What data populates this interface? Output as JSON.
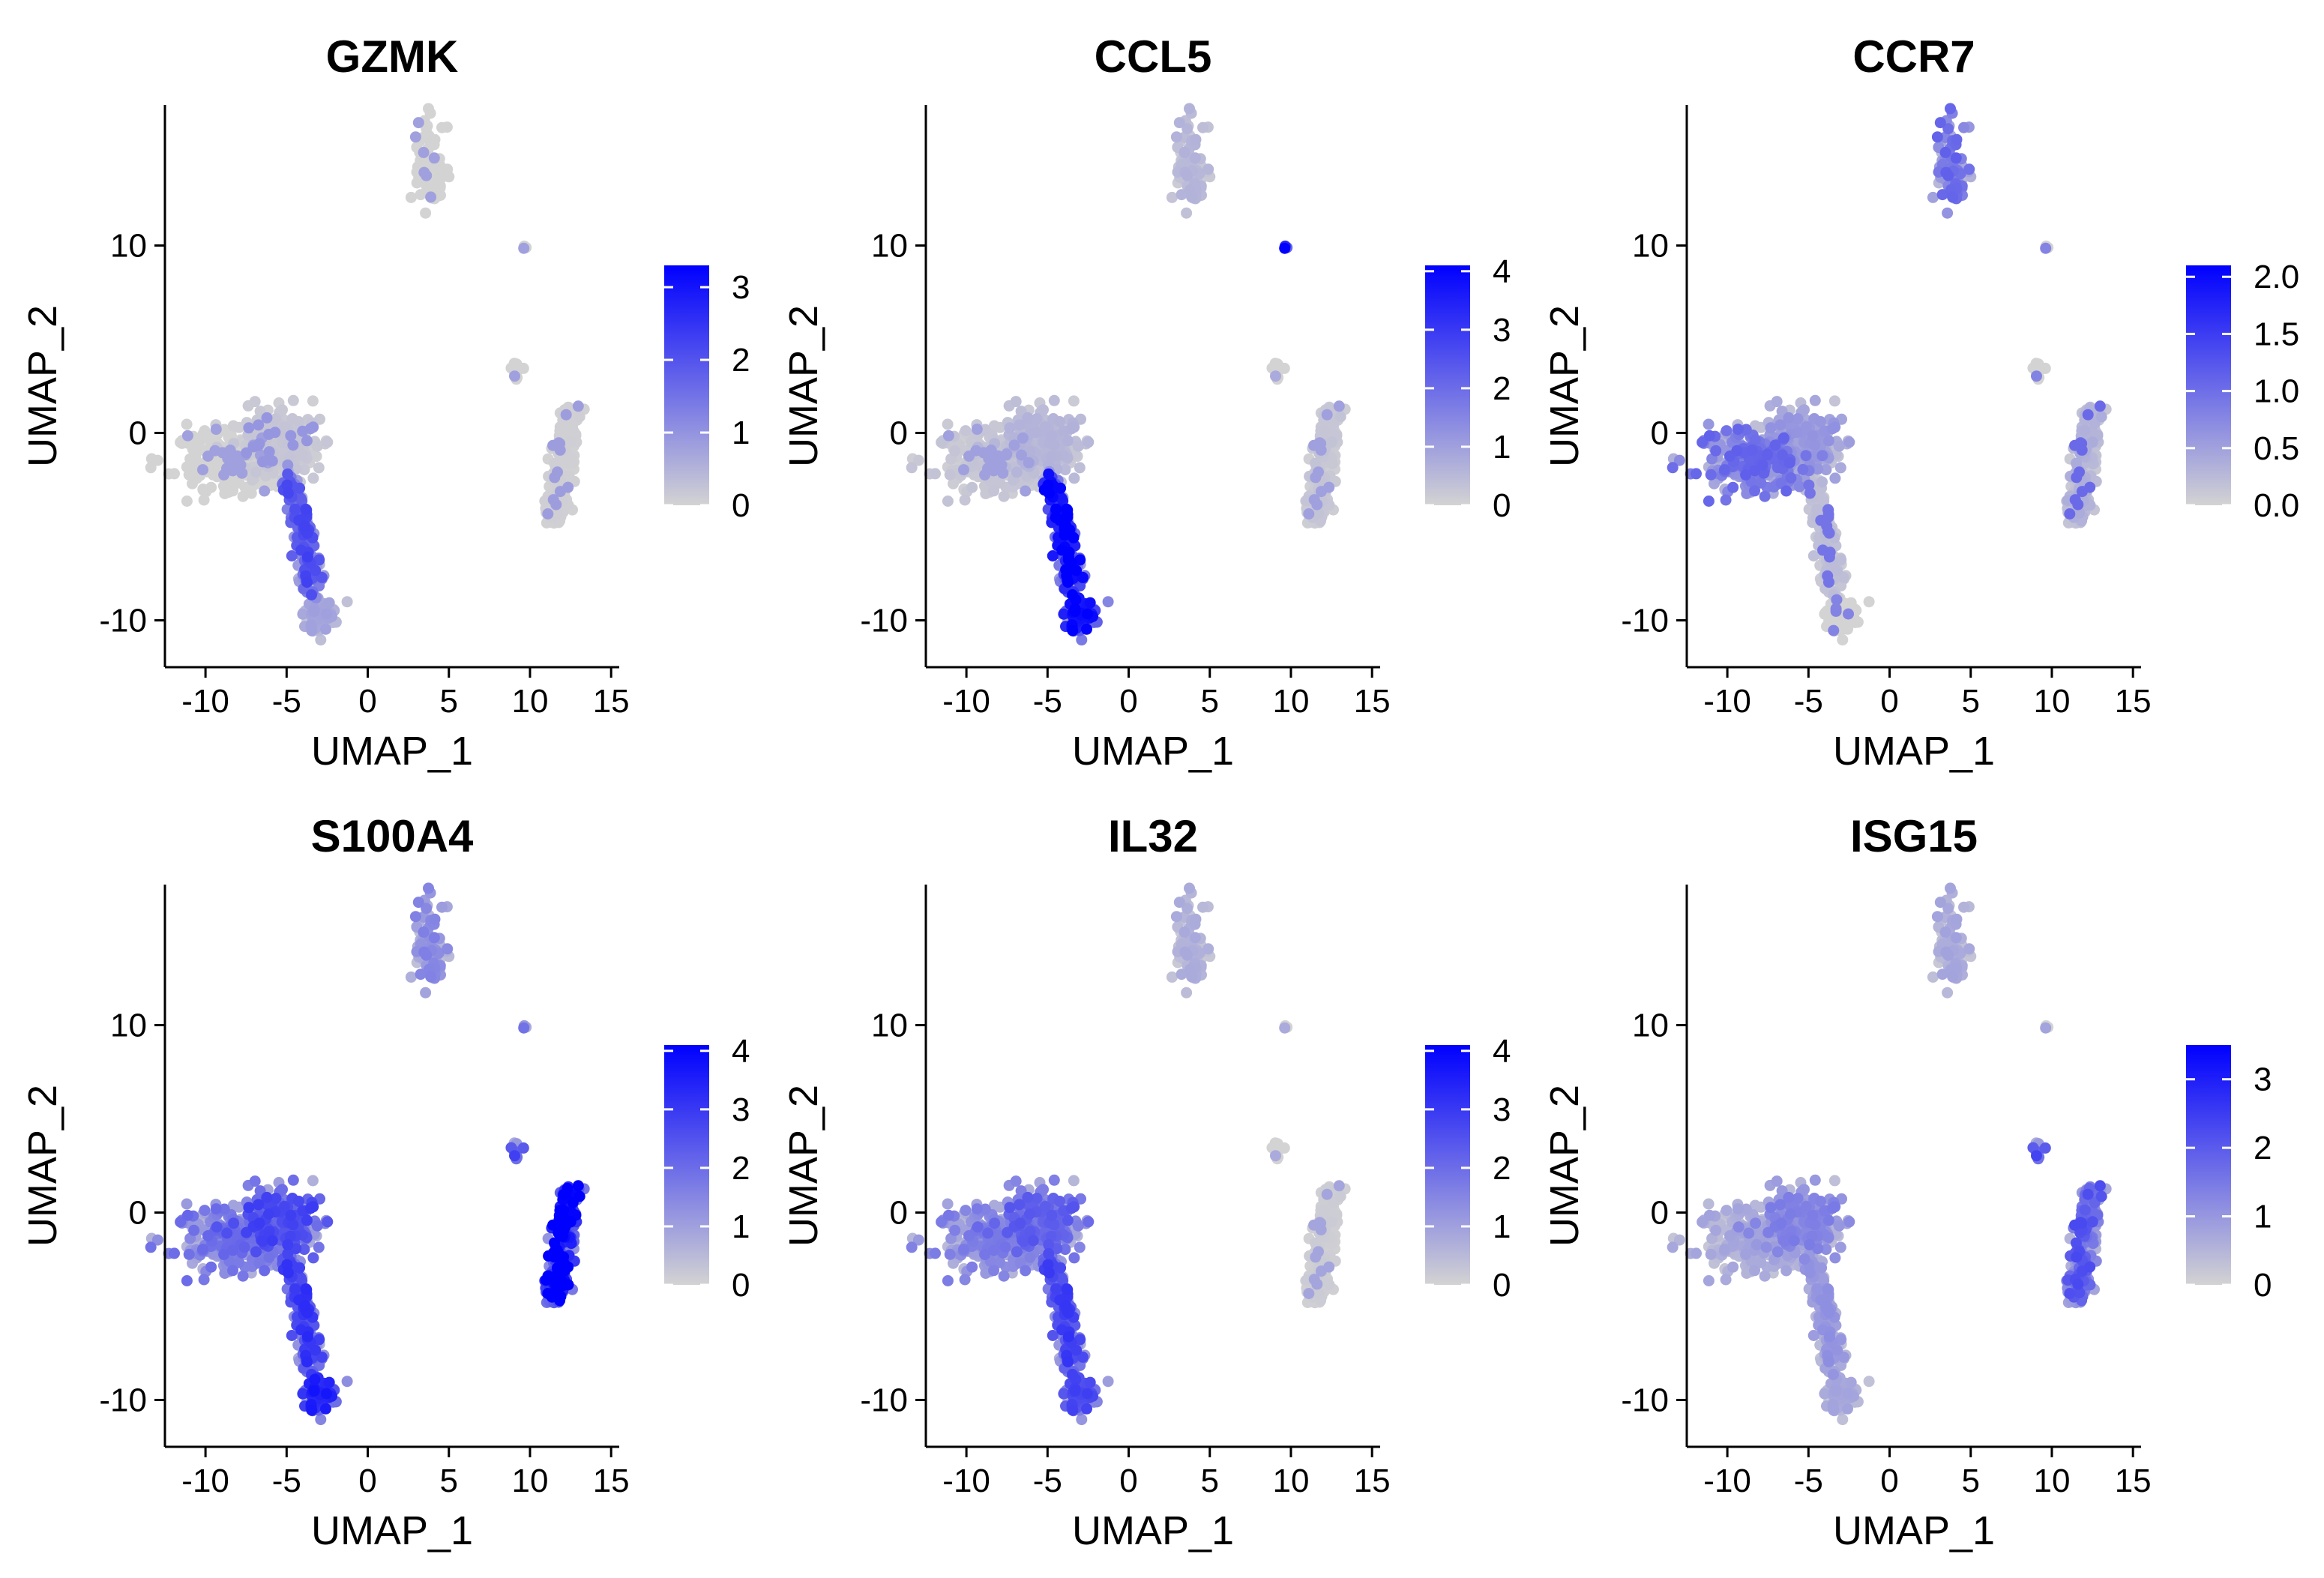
{
  "figure": {
    "colors": {
      "low": "#d3d3d3",
      "high": "#0000ff",
      "axis": "#000000"
    }
  },
  "chart_data": [
    {
      "type": "scatter",
      "title": "GZMK",
      "xlabel": "UMAP_1",
      "ylabel": "UMAP_2",
      "xlim": [
        -12.5,
        15.5
      ],
      "ylim": [
        -12.5,
        17.5
      ],
      "xticks": [
        -10,
        -5,
        0,
        5,
        10,
        15
      ],
      "yticks": [
        -10,
        0,
        10
      ],
      "xtick_labels": [
        "-10",
        "-5",
        "0",
        "5",
        "10",
        "15"
      ],
      "ytick_labels": [
        "-10",
        "0",
        "10"
      ],
      "color_scale": {
        "min": 0,
        "max": 3.3,
        "ticks": [
          0,
          1,
          2,
          3
        ],
        "tick_labels": [
          "0",
          "1",
          "2",
          "3"
        ]
      },
      "cluster_expression": {
        "c1_left": 0.0,
        "c2_center": 0.15,
        "c3_stem": 1.4,
        "c4_bottom": 0.5,
        "c5_right": 0.05,
        "c6_top": 0.0,
        "c7_small": 0.0,
        "c8_dot": 0.0
      }
    },
    {
      "type": "scatter",
      "title": "CCL5",
      "xlabel": "UMAP_1",
      "ylabel": "UMAP_2",
      "xlim": [
        -12.5,
        15.5
      ],
      "ylim": [
        -12.5,
        17.5
      ],
      "xticks": [
        -10,
        -5,
        0,
        5,
        10,
        15
      ],
      "yticks": [
        -10,
        0,
        10
      ],
      "xtick_labels": [
        "-10",
        "-5",
        "0",
        "5",
        "10",
        "15"
      ],
      "ytick_labels": [
        "-10",
        "0",
        "10"
      ],
      "color_scale": {
        "min": 0,
        "max": 4.1,
        "ticks": [
          0,
          1,
          2,
          3,
          4
        ],
        "tick_labels": [
          "0",
          "1",
          "2",
          "3",
          "4"
        ]
      },
      "cluster_expression": {
        "c1_left": 0.2,
        "c2_center": 0.4,
        "c3_stem": 2.8,
        "c4_bottom": 2.6,
        "c5_right": 0.2,
        "c6_top": 0.4,
        "c7_small": 0.0,
        "c8_dot": 3.5
      }
    },
    {
      "type": "scatter",
      "title": "CCR7",
      "xlabel": "UMAP_1",
      "ylabel": "UMAP_2",
      "xlim": [
        -12.5,
        15.5
      ],
      "ylim": [
        -12.5,
        17.5
      ],
      "xticks": [
        -10,
        -5,
        0,
        5,
        10,
        15
      ],
      "yticks": [
        -10,
        0,
        10
      ],
      "xtick_labels": [
        "-10",
        "-5",
        "0",
        "5",
        "10",
        "15"
      ],
      "ytick_labels": [
        "-10",
        "0",
        "10"
      ],
      "color_scale": {
        "min": 0,
        "max": 2.1,
        "ticks": [
          0,
          0.5,
          1.0,
          1.5,
          2.0
        ],
        "tick_labels": [
          "0.0",
          "0.5",
          "1.0",
          "1.5",
          "2.0"
        ]
      },
      "cluster_expression": {
        "c1_left": 0.7,
        "c2_center": 0.4,
        "c3_stem": 0.15,
        "c4_bottom": 0.0,
        "c5_right": 0.25,
        "c6_top": 0.7,
        "c7_small": 0.0,
        "c8_dot": 0.0
      }
    },
    {
      "type": "scatter",
      "title": "S100A4",
      "xlabel": "UMAP_1",
      "ylabel": "UMAP_2",
      "xlim": [
        -12.5,
        15.5
      ],
      "ylim": [
        -12.5,
        17.5
      ],
      "xticks": [
        -10,
        -5,
        0,
        5,
        10,
        15
      ],
      "yticks": [
        -10,
        0,
        10
      ],
      "xtick_labels": [
        "-10",
        "-5",
        "0",
        "5",
        "10",
        "15"
      ],
      "ytick_labels": [
        "-10",
        "0",
        "10"
      ],
      "color_scale": {
        "min": 0,
        "max": 4.1,
        "ticks": [
          0,
          1,
          2,
          3,
          4
        ],
        "tick_labels": [
          "0",
          "1",
          "2",
          "3",
          "4"
        ]
      },
      "cluster_expression": {
        "c1_left": 1.3,
        "c2_center": 1.8,
        "c3_stem": 2.0,
        "c4_bottom": 2.3,
        "c5_right": 3.3,
        "c6_top": 1.0,
        "c7_small": 1.8,
        "c8_dot": 1.2
      }
    },
    {
      "type": "scatter",
      "title": "IL32",
      "xlabel": "UMAP_1",
      "ylabel": "UMAP_2",
      "xlim": [
        -12.5,
        15.5
      ],
      "ylim": [
        -12.5,
        17.5
      ],
      "xticks": [
        -10,
        -5,
        0,
        5,
        10,
        15
      ],
      "yticks": [
        -10,
        0,
        10
      ],
      "xtick_labels": [
        "-10",
        "-5",
        "0",
        "5",
        "10",
        "15"
      ],
      "ytick_labels": [
        "-10",
        "0",
        "10"
      ],
      "color_scale": {
        "min": 0,
        "max": 4.1,
        "ticks": [
          0,
          1,
          2,
          3,
          4
        ],
        "tick_labels": [
          "0",
          "1",
          "2",
          "3",
          "4"
        ]
      },
      "cluster_expression": {
        "c1_left": 1.1,
        "c2_center": 1.5,
        "c3_stem": 1.9,
        "c4_bottom": 1.8,
        "c5_right": 0.1,
        "c6_top": 0.5,
        "c7_small": 0.0,
        "c8_dot": 0.0
      }
    },
    {
      "type": "scatter",
      "title": "ISG15",
      "xlabel": "UMAP_1",
      "ylabel": "UMAP_2",
      "xlim": [
        -12.5,
        15.5
      ],
      "ylim": [
        -12.5,
        17.5
      ],
      "xticks": [
        -10,
        -5,
        0,
        5,
        10,
        15
      ],
      "yticks": [
        -10,
        0,
        10
      ],
      "xtick_labels": [
        "-10",
        "-5",
        "0",
        "5",
        "10",
        "15"
      ],
      "ytick_labels": [
        "-10",
        "0",
        "10"
      ],
      "color_scale": {
        "min": 0,
        "max": 3.5,
        "ticks": [
          0,
          1,
          2,
          3
        ],
        "tick_labels": [
          "0",
          "1",
          "2",
          "3"
        ]
      },
      "cluster_expression": {
        "c1_left": 0.5,
        "c2_center": 0.9,
        "c3_stem": 0.7,
        "c4_bottom": 0.5,
        "c5_right": 1.4,
        "c6_top": 0.5,
        "c7_small": 1.5,
        "c8_dot": 0.0
      }
    }
  ]
}
